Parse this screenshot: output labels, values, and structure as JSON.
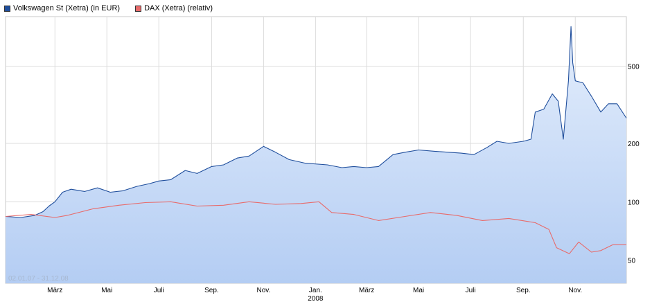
{
  "chart_data": {
    "type": "line",
    "date_range_label": "02.01.07 - 31.12.08",
    "scale": "log",
    "ylim": [
      38,
      900
    ],
    "yticks": [
      {
        "value": 50,
        "label": "50"
      },
      {
        "value": 100,
        "label": "100"
      },
      {
        "value": 200,
        "label": "200"
      },
      {
        "value": 500,
        "label": "500"
      }
    ],
    "xlim": [
      "2007-01-02",
      "2008-12-31"
    ],
    "xticks": [
      {
        "date": "2007-03-01",
        "label": "März"
      },
      {
        "date": "2007-05-01",
        "label": "Mai"
      },
      {
        "date": "2007-07-01",
        "label": "Juli"
      },
      {
        "date": "2007-09-01",
        "label": "Sep."
      },
      {
        "date": "2007-11-01",
        "label": "Nov."
      },
      {
        "date": "2008-01-01",
        "label": "Jan."
      },
      {
        "date": "2008-03-01",
        "label": "März"
      },
      {
        "date": "2008-05-01",
        "label": "Mai"
      },
      {
        "date": "2008-07-01",
        "label": "Juli"
      },
      {
        "date": "2008-09-01",
        "label": "Sep."
      },
      {
        "date": "2008-11-01",
        "label": "Nov."
      }
    ],
    "year_label": {
      "date": "2008-01-01",
      "label": "2008"
    },
    "grid": true,
    "legend_position": "top-left",
    "series": [
      {
        "name": "Volkswagen St (Xetra) (in EUR)",
        "color": "#1f4e9c",
        "fill": "#c9dcf7",
        "points": [
          [
            "2007-01-02",
            84
          ],
          [
            "2007-01-20",
            83
          ],
          [
            "2007-02-05",
            85
          ],
          [
            "2007-02-15",
            89
          ],
          [
            "2007-02-22",
            95
          ],
          [
            "2007-03-01",
            100
          ],
          [
            "2007-03-10",
            112
          ],
          [
            "2007-03-20",
            116
          ],
          [
            "2007-04-05",
            113
          ],
          [
            "2007-04-20",
            118
          ],
          [
            "2007-05-05",
            112
          ],
          [
            "2007-05-20",
            114
          ],
          [
            "2007-06-05",
            120
          ],
          [
            "2007-06-20",
            124
          ],
          [
            "2007-07-01",
            128
          ],
          [
            "2007-07-15",
            130
          ],
          [
            "2007-08-01",
            145
          ],
          [
            "2007-08-15",
            140
          ],
          [
            "2007-09-01",
            152
          ],
          [
            "2007-09-15",
            155
          ],
          [
            "2007-10-01",
            168
          ],
          [
            "2007-10-15",
            172
          ],
          [
            "2007-11-01",
            193
          ],
          [
            "2007-11-15",
            180
          ],
          [
            "2007-12-01",
            165
          ],
          [
            "2007-12-20",
            158
          ],
          [
            "2008-01-15",
            155
          ],
          [
            "2008-02-01",
            150
          ],
          [
            "2008-02-15",
            152
          ],
          [
            "2008-03-01",
            150
          ],
          [
            "2008-03-15",
            152
          ],
          [
            "2008-04-01",
            175
          ],
          [
            "2008-04-15",
            180
          ],
          [
            "2008-05-01",
            185
          ],
          [
            "2008-05-20",
            182
          ],
          [
            "2008-06-05",
            180
          ],
          [
            "2008-06-20",
            178
          ],
          [
            "2008-07-05",
            175
          ],
          [
            "2008-07-20",
            190
          ],
          [
            "2008-08-01",
            205
          ],
          [
            "2008-08-15",
            200
          ],
          [
            "2008-09-01",
            205
          ],
          [
            "2008-09-10",
            210
          ],
          [
            "2008-09-15",
            290
          ],
          [
            "2008-09-25",
            300
          ],
          [
            "2008-10-05",
            360
          ],
          [
            "2008-10-12",
            330
          ],
          [
            "2008-10-18",
            210
          ],
          [
            "2008-10-24",
            420
          ],
          [
            "2008-10-27",
            800
          ],
          [
            "2008-10-29",
            520
          ],
          [
            "2008-11-01",
            420
          ],
          [
            "2008-11-10",
            410
          ],
          [
            "2008-11-20",
            350
          ],
          [
            "2008-12-01",
            290
          ],
          [
            "2008-12-10",
            320
          ],
          [
            "2008-12-20",
            320
          ],
          [
            "2008-12-31",
            270
          ]
        ]
      },
      {
        "name": "DAX (Xetra) (relativ)",
        "color": "#e86a6a",
        "points": [
          [
            "2007-01-02",
            84
          ],
          [
            "2007-02-01",
            86
          ],
          [
            "2007-03-01",
            83
          ],
          [
            "2007-03-15",
            85
          ],
          [
            "2007-04-15",
            92
          ],
          [
            "2007-05-15",
            96
          ],
          [
            "2007-06-15",
            99
          ],
          [
            "2007-07-15",
            100
          ],
          [
            "2007-08-15",
            95
          ],
          [
            "2007-09-15",
            96
          ],
          [
            "2007-10-15",
            100
          ],
          [
            "2007-11-15",
            97
          ],
          [
            "2007-12-15",
            98
          ],
          [
            "2008-01-05",
            100
          ],
          [
            "2008-01-20",
            88
          ],
          [
            "2008-02-15",
            86
          ],
          [
            "2008-03-15",
            80
          ],
          [
            "2008-04-15",
            84
          ],
          [
            "2008-05-15",
            88
          ],
          [
            "2008-06-15",
            85
          ],
          [
            "2008-07-15",
            80
          ],
          [
            "2008-08-15",
            82
          ],
          [
            "2008-09-15",
            78
          ],
          [
            "2008-10-01",
            72
          ],
          [
            "2008-10-10",
            58
          ],
          [
            "2008-10-25",
            54
          ],
          [
            "2008-11-05",
            62
          ],
          [
            "2008-11-20",
            55
          ],
          [
            "2008-12-01",
            56
          ],
          [
            "2008-12-15",
            60
          ],
          [
            "2008-12-31",
            60
          ]
        ]
      }
    ]
  }
}
